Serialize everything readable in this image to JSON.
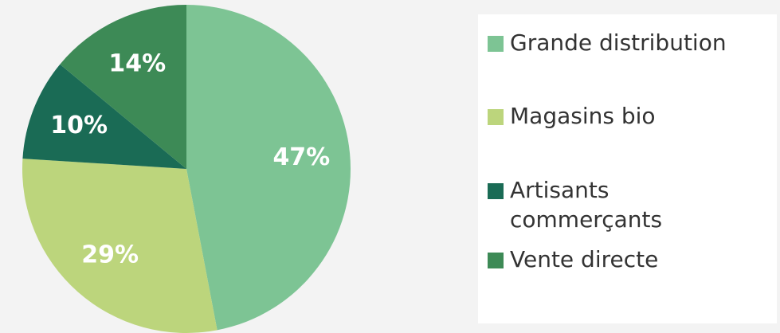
{
  "chart_data": {
    "type": "pie",
    "categories": [
      "Grande distribution",
      "Magasins bio",
      "Artisants commerçants",
      "Vente directe"
    ],
    "values": [
      47,
      29,
      10,
      14
    ],
    "value_labels": [
      "47%",
      "29%",
      "10%",
      "14%"
    ],
    "colors": [
      "#7dc494",
      "#bcd57c",
      "#1a6b55",
      "#3d8a56"
    ]
  }
}
